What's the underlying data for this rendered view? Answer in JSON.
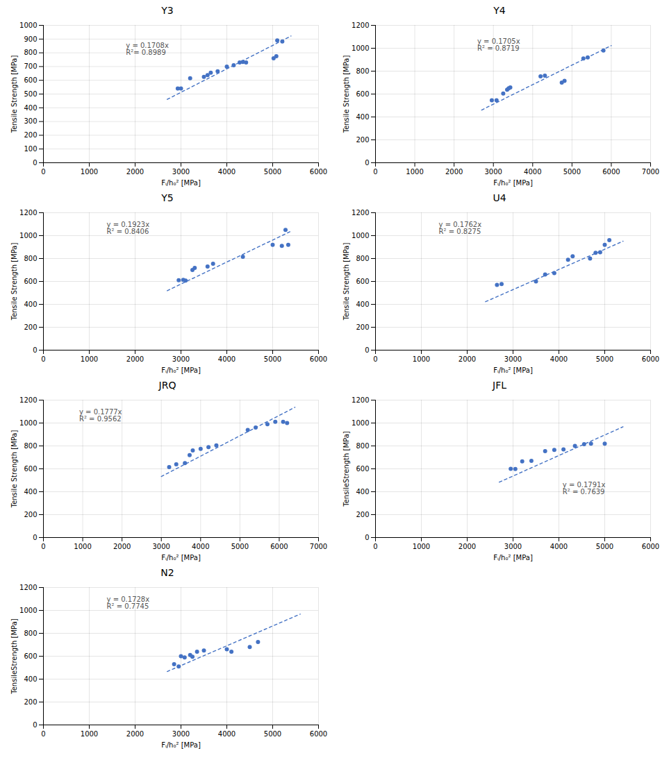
{
  "chart_data": [
    {
      "type": "scatter",
      "title": "Y3",
      "xlabel": "Fᵢ/h₀² [MPa]",
      "ylabel": "Tensile Strength [MPa]",
      "xlim": [
        0,
        6000
      ],
      "ylim": [
        0,
        1000
      ],
      "xticks": [
        0,
        1000,
        2000,
        3000,
        4000,
        5000,
        6000
      ],
      "yticks": [
        0,
        100,
        200,
        300,
        400,
        500,
        600,
        700,
        800,
        900,
        1000
      ],
      "grid": true,
      "series": [
        {
          "type": "line",
          "line_style": "dashed",
          "color": "#4472c4",
          "x": [
            2700,
            5400
          ],
          "values": [
            461.16,
            922.32
          ]
        },
        {
          "type": "scatter",
          "color": "#4472c4",
          "x": [
            2930,
            3000,
            3200,
            3500,
            3580,
            3650,
            3800,
            4000,
            4150,
            4280,
            4350,
            4420,
            5020,
            5080,
            5100,
            5210
          ],
          "values": [
            540,
            540,
            615,
            625,
            638,
            655,
            665,
            700,
            710,
            730,
            733,
            730,
            760,
            775,
            890,
            882
          ]
        }
      ],
      "annotations": [
        {
          "text": "y = 0.1708x\nR²= 0.8989",
          "x": 1800,
          "y": 870,
          "color": "#555555"
        }
      ]
    },
    {
      "type": "scatter",
      "title": "Y4",
      "xlabel": "Fᵢ/h₀² [MPa]",
      "ylabel": "Tensile Strength [MPa]",
      "xlim": [
        0,
        7000
      ],
      "ylim": [
        0,
        1200
      ],
      "xticks": [
        0,
        1000,
        2000,
        3000,
        4000,
        5000,
        6000,
        7000
      ],
      "yticks": [
        0,
        200,
        400,
        600,
        800,
        1000,
        1200
      ],
      "grid": true,
      "series": [
        {
          "type": "line",
          "line_style": "dashed",
          "color": "#4472c4",
          "x": [
            2700,
            6000
          ],
          "values": [
            460.35,
            1023
          ]
        },
        {
          "type": "scatter",
          "color": "#4472c4",
          "x": [
            2960,
            3080,
            3250,
            3350,
            3390,
            3430,
            4200,
            4310,
            4740,
            4810,
            5290,
            5400,
            5800
          ],
          "values": [
            545,
            545,
            605,
            638,
            650,
            658,
            755,
            760,
            700,
            715,
            910,
            920,
            980
          ]
        }
      ],
      "annotations": [
        {
          "text": "y = 0.1705x\nR² = 0.8719",
          "x": 2590,
          "y": 1080,
          "color": "#555555"
        }
      ]
    },
    {
      "type": "scatter",
      "title": "Y5",
      "xlabel": "Fᵢ/h₀² [MPa]",
      "ylabel": "Tensile Strength [MPa]",
      "xlim": [
        0,
        6000
      ],
      "ylim": [
        0,
        1200
      ],
      "xticks": [
        0,
        1000,
        2000,
        3000,
        4000,
        5000,
        6000
      ],
      "yticks": [
        0,
        200,
        400,
        600,
        800,
        1000,
        1200
      ],
      "grid": true,
      "series": [
        {
          "type": "line",
          "line_style": "dashed",
          "color": "#4472c4",
          "x": [
            2700,
            5400
          ],
          "values": [
            519.21,
            1038.42
          ]
        },
        {
          "type": "scatter",
          "color": "#4472c4",
          "x": [
            2950,
            3050,
            3100,
            3250,
            3300,
            3580,
            3700,
            4350,
            5000,
            5200,
            5280,
            5340
          ],
          "values": [
            610,
            614,
            608,
            700,
            718,
            730,
            754,
            815,
            920,
            910,
            1050,
            920
          ]
        }
      ],
      "annotations": [
        {
          "text": "y = 0.1923x\nR² = 0.8406",
          "x": 1380,
          "y": 1116,
          "color": "#555555"
        }
      ]
    },
    {
      "type": "scatter",
      "title": "U4",
      "xlabel": "Fᵢ/h₀² [MPa]",
      "ylabel": "Tensile Strength [MPa]",
      "xlim": [
        0,
        6000
      ],
      "ylim": [
        0,
        1200
      ],
      "xticks": [
        0,
        1000,
        2000,
        3000,
        4000,
        5000,
        6000
      ],
      "yticks": [
        0,
        200,
        400,
        600,
        800,
        1000,
        1200
      ],
      "grid": true,
      "series": [
        {
          "type": "line",
          "line_style": "dashed",
          "color": "#4472c4",
          "x": [
            2400,
            5400
          ],
          "values": [
            422.88,
            951.48
          ]
        },
        {
          "type": "scatter",
          "color": "#4472c4",
          "x": [
            2650,
            2750,
            3500,
            3700,
            3900,
            4200,
            4300,
            4680,
            4800,
            4900,
            5000,
            5100
          ],
          "values": [
            570,
            578,
            600,
            660,
            672,
            790,
            820,
            800,
            850,
            855,
            920,
            960
          ]
        }
      ],
      "annotations": [
        {
          "text": "y = 0.1762x\nR² = 0.8275",
          "x": 1380,
          "y": 1116,
          "color": "#555555"
        }
      ]
    },
    {
      "type": "scatter",
      "title": "JRQ",
      "xlabel": "Fᵢ/h₀² [MPa]",
      "ylabel": "Tensile Strength [MPa]",
      "xlim": [
        0,
        7000
      ],
      "ylim": [
        0,
        1200
      ],
      "xticks": [
        0,
        1000,
        2000,
        3000,
        4000,
        5000,
        6000,
        7000
      ],
      "yticks": [
        0,
        200,
        400,
        600,
        800,
        1000,
        1200
      ],
      "grid": true,
      "series": [
        {
          "type": "line",
          "line_style": "dashed",
          "color": "#4472c4",
          "x": [
            3000,
            6400
          ],
          "values": [
            533.1,
            1137.28
          ]
        },
        {
          "type": "scatter",
          "color": "#4472c4",
          "x": [
            3200,
            3380,
            3600,
            3720,
            3800,
            4000,
            4200,
            4400,
            5200,
            5400,
            5700,
            5900,
            6100,
            6200
          ],
          "values": [
            615,
            640,
            650,
            720,
            760,
            775,
            790,
            805,
            940,
            960,
            990,
            1010,
            1010,
            1000
          ]
        }
      ],
      "annotations": [
        {
          "text": "y = 0.1777x\nR² = 0.9562",
          "x": 910,
          "y": 1116,
          "color": "#555555"
        }
      ]
    },
    {
      "type": "scatter",
      "title": "JFL",
      "xlabel": "Fᵢ/h₀² [MPa]",
      "ylabel": "TensileStrength [MPa]",
      "xlim": [
        0,
        6000
      ],
      "ylim": [
        0,
        1200
      ],
      "xticks": [
        0,
        1000,
        2000,
        3000,
        4000,
        5000,
        6000
      ],
      "yticks": [
        0,
        200,
        400,
        600,
        800,
        1000,
        1200
      ],
      "grid": true,
      "series": [
        {
          "type": "line",
          "line_style": "dashed",
          "color": "#4472c4",
          "x": [
            2700,
            5400
          ],
          "values": [
            483.57,
            967.14
          ]
        },
        {
          "type": "scatter",
          "color": "#4472c4",
          "x": [
            2950,
            3050,
            3200,
            3400,
            3700,
            3900,
            4100,
            4350,
            4550,
            4700,
            5000
          ],
          "values": [
            600,
            598,
            665,
            670,
            755,
            765,
            770,
            800,
            815,
            820,
            820
          ]
        }
      ],
      "annotations": [
        {
          "text": "y = 0.1791x\nR² = 0.7639",
          "x": 4080,
          "y": 480,
          "color": "#555555"
        }
      ]
    },
    {
      "type": "scatter",
      "title": "N2",
      "xlabel": "Fᵢ/h₀² [MPa]",
      "ylabel": "TensileStrength [MPa]",
      "xlim": [
        0,
        6000
      ],
      "ylim": [
        0,
        1200
      ],
      "xticks": [
        0,
        1000,
        2000,
        3000,
        4000,
        5000,
        6000
      ],
      "yticks": [
        0,
        200,
        400,
        600,
        800,
        1000,
        1200
      ],
      "grid": true,
      "series": [
        {
          "type": "line",
          "line_style": "dashed",
          "color": "#4472c4",
          "x": [
            2700,
            5600
          ],
          "values": [
            466.56,
            967.68
          ]
        },
        {
          "type": "scatter",
          "color": "#4472c4",
          "x": [
            2850,
            2950,
            3000,
            3080,
            3200,
            3250,
            3350,
            3500,
            4000,
            4100,
            4500,
            4680
          ],
          "values": [
            530,
            510,
            600,
            590,
            610,
            595,
            640,
            650,
            660,
            640,
            680,
            725
          ]
        }
      ],
      "annotations": [
        {
          "text": "y = 0.1728x\nR² = 0.7745",
          "x": 1380,
          "y": 1116,
          "color": "#555555"
        }
      ]
    }
  ]
}
